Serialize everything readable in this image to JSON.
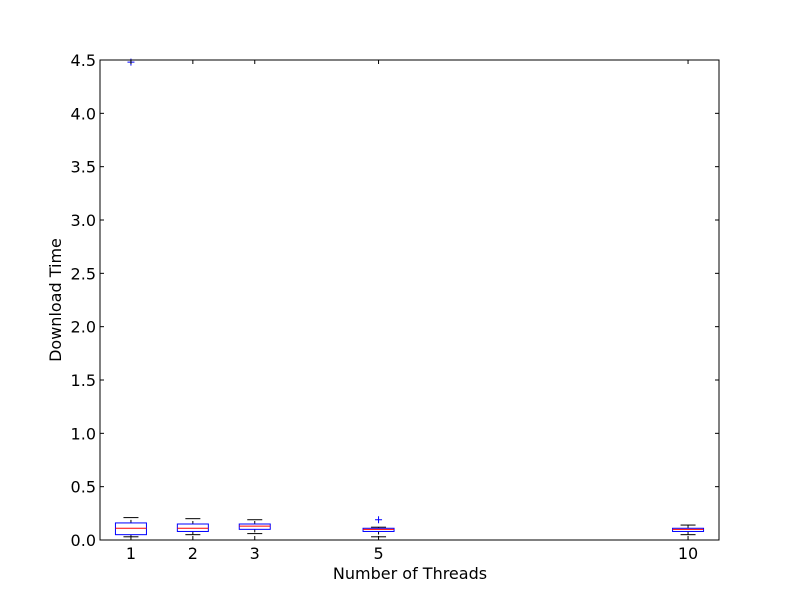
{
  "chart_data": {
    "type": "boxplot",
    "xlabel": "Number of Threads",
    "ylabel": "Download Time",
    "ylim": [
      0.0,
      4.5
    ],
    "xlim": [
      0.5,
      10.5
    ],
    "y_ticks": [
      "0.0",
      "0.5",
      "1.0",
      "1.5",
      "2.0",
      "2.5",
      "3.0",
      "3.5",
      "4.0",
      "4.5"
    ],
    "x_ticks": [
      "1",
      "2",
      "3",
      "5",
      "10"
    ],
    "grid": false,
    "boxes": [
      {
        "x": 1,
        "whislo": 0.03,
        "q1": 0.05,
        "med": 0.11,
        "q3": 0.16,
        "whishi": 0.21,
        "fliers": [
          4.48
        ]
      },
      {
        "x": 2,
        "whislo": 0.05,
        "q1": 0.08,
        "med": 0.11,
        "q3": 0.15,
        "whishi": 0.2,
        "fliers": []
      },
      {
        "x": 3,
        "whislo": 0.06,
        "q1": 0.1,
        "med": 0.13,
        "q3": 0.15,
        "whishi": 0.19,
        "fliers": []
      },
      {
        "x": 5,
        "whislo": 0.03,
        "q1": 0.08,
        "med": 0.1,
        "q3": 0.11,
        "whishi": 0.12,
        "fliers": [
          0.19
        ]
      },
      {
        "x": 10,
        "whislo": 0.05,
        "q1": 0.08,
        "med": 0.1,
        "q3": 0.11,
        "whishi": 0.14,
        "fliers": []
      }
    ],
    "colors": {
      "box": "#0000ff",
      "median": "#ff0000",
      "whisker": "#000000",
      "flier": "#0000ff",
      "axes": "#000000"
    }
  }
}
